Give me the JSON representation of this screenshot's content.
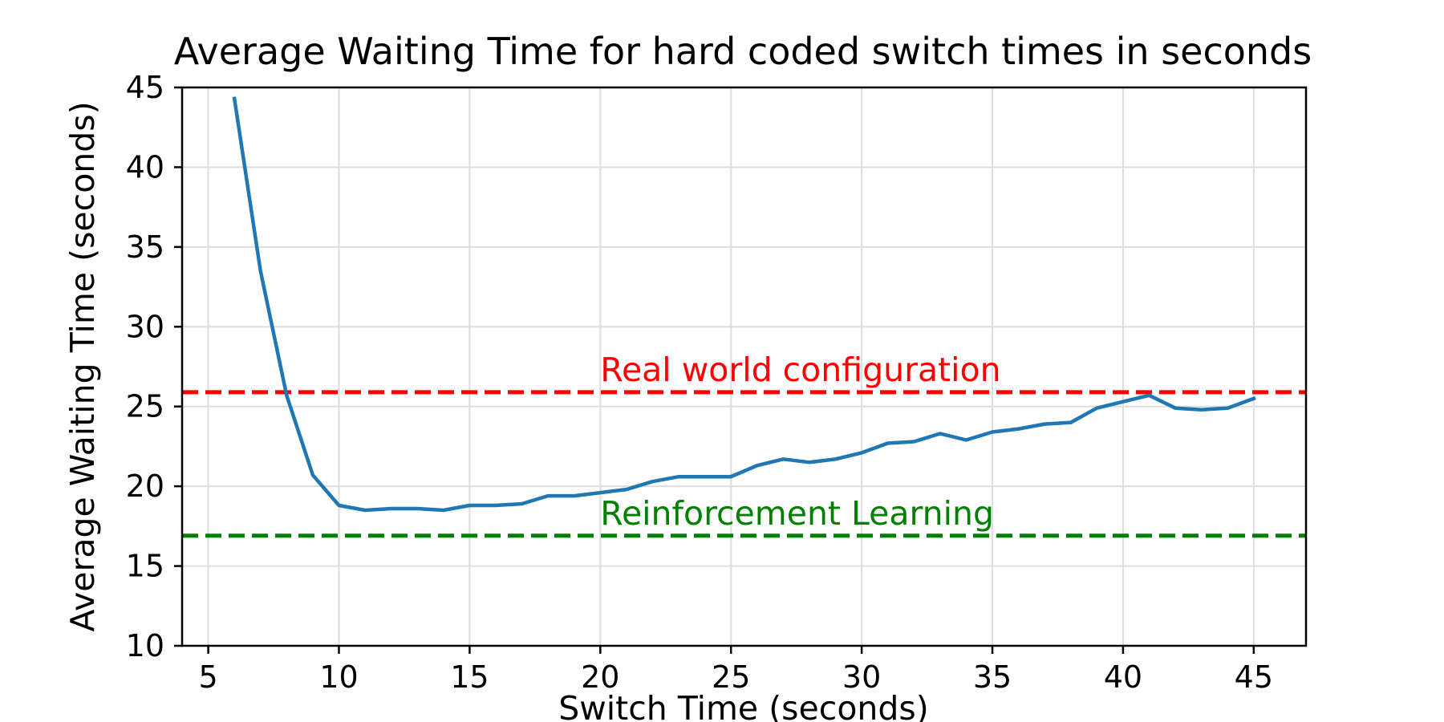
{
  "chart_data": {
    "type": "line",
    "title": "Average Waiting Time for hard coded switch times in seconds",
    "xlabel": "Switch Time (seconds)",
    "ylabel": "Average Waiting Time (seconds)",
    "xlim": [
      4,
      47
    ],
    "ylim": [
      10,
      45
    ],
    "xticks": [
      5,
      10,
      15,
      20,
      25,
      30,
      35,
      40,
      45
    ],
    "yticks": [
      10,
      15,
      20,
      25,
      30,
      35,
      40,
      45
    ],
    "grid": true,
    "series": [
      {
        "color": "#1f77b4",
        "x": [
          6,
          7,
          8,
          9,
          10,
          11,
          12,
          13,
          14,
          15,
          16,
          17,
          18,
          19,
          20,
          21,
          22,
          23,
          24,
          25,
          26,
          27,
          28,
          29,
          30,
          31,
          32,
          33,
          34,
          35,
          36,
          37,
          38,
          39,
          40,
          41,
          42,
          43,
          44,
          45
        ],
        "y": [
          44.3,
          33.5,
          25.7,
          20.7,
          18.8,
          18.5,
          18.6,
          18.6,
          18.5,
          18.8,
          18.8,
          18.9,
          19.4,
          19.4,
          19.6,
          19.8,
          20.3,
          20.6,
          20.6,
          20.6,
          21.3,
          21.7,
          21.5,
          21.7,
          22.1,
          22.7,
          22.8,
          23.3,
          22.9,
          23.4,
          23.6,
          23.9,
          24.0,
          24.9,
          25.3,
          25.7,
          24.9,
          24.8,
          24.9,
          25.5
        ]
      }
    ],
    "reference_lines": [
      {
        "y": 25.9,
        "color": "#ff0000",
        "style": "dashed",
        "label": "Real world configuration"
      },
      {
        "y": 16.9,
        "color": "#008000",
        "style": "dashed",
        "label": "Reinforcement Learning"
      }
    ],
    "annotation_x": 20
  }
}
